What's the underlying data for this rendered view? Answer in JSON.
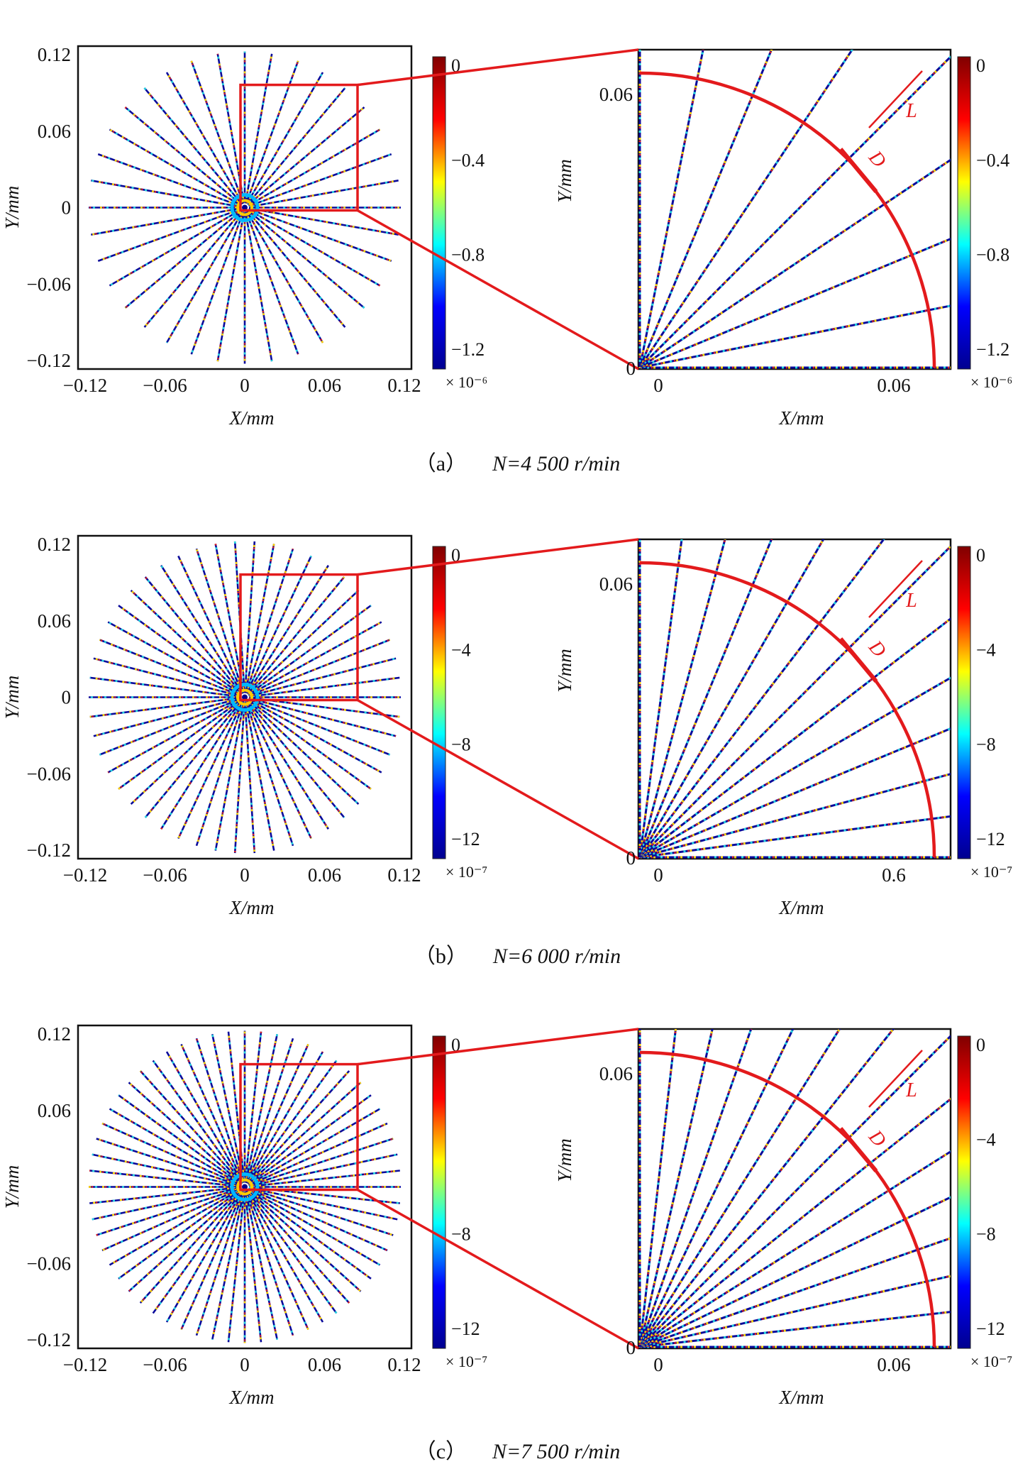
{
  "colorbar_colors": [
    "#00008f",
    "#0000ff",
    "#00ffff",
    "#ffff00",
    "#ff0000",
    "#800000"
  ],
  "line_color": "#e31a1c",
  "axis_labels": {
    "x": "X/mm",
    "y": "Y/mm"
  },
  "marker_labels": {
    "L": "L",
    "D": "D"
  },
  "panels": [
    {
      "id": "a",
      "caption_label": "（a）",
      "caption_text": "N=4 500 r/min",
      "spokes": 36,
      "overview": {
        "xticks": [
          "−0.12",
          "−0.06",
          "0",
          "0.06",
          "0.12"
        ],
        "yticks": [
          "0.12",
          "0.06",
          "0",
          "−0.06",
          "−0.12"
        ]
      },
      "overview_colorbar": {
        "ticks": [
          "0",
          "−0.4",
          "−0.8",
          "−1.2"
        ],
        "exponent": "× 10⁻⁶"
      },
      "zoom": {
        "xticks": [
          "0",
          "0.06"
        ],
        "yticks": [
          "0.06",
          "0"
        ]
      },
      "zoom_colorbar": {
        "ticks": [
          "0",
          "−0.4",
          "−0.8",
          "−1.2"
        ],
        "exponent": "× 10⁻⁶"
      }
    },
    {
      "id": "b",
      "caption_label": "（b）",
      "caption_text": "N=6 000 r/min",
      "spokes": 50,
      "overview": {
        "xticks": [
          "−0.12",
          "−0.06",
          "0",
          "0.06",
          "0.12"
        ],
        "yticks": [
          "0.12",
          "0.06",
          "0",
          "−0.06",
          "−0.12"
        ]
      },
      "overview_colorbar": {
        "ticks": [
          "0",
          "−4",
          "−8",
          "−12"
        ],
        "exponent": "× 10⁻⁷"
      },
      "zoom": {
        "xticks": [
          "0",
          "0.6"
        ],
        "yticks": [
          "0.06",
          "0"
        ]
      },
      "zoom_colorbar": {
        "ticks": [
          "0",
          "−4",
          "−8",
          "−12"
        ],
        "exponent": "× 10⁻⁷"
      }
    },
    {
      "id": "c",
      "caption_label": "（c）",
      "caption_text": "N=7 500 r/min",
      "spokes": 60,
      "overview": {
        "xticks": [
          "−0.12",
          "−0.06",
          "0",
          "0.06",
          "0.12"
        ],
        "yticks": [
          "0.12",
          "0.06",
          "",
          "−0.06",
          "−0.12"
        ]
      },
      "overview_colorbar": {
        "ticks": [
          "0",
          "",
          "−8",
          "−12"
        ],
        "exponent": "× 10⁻⁷"
      },
      "zoom": {
        "xticks": [
          "0",
          "0.06"
        ],
        "yticks": [
          "0.06",
          "0"
        ]
      },
      "zoom_colorbar": {
        "ticks": [
          "0",
          "−4",
          "−8",
          "−12"
        ],
        "exponent": "× 10⁻⁷"
      }
    }
  ]
}
